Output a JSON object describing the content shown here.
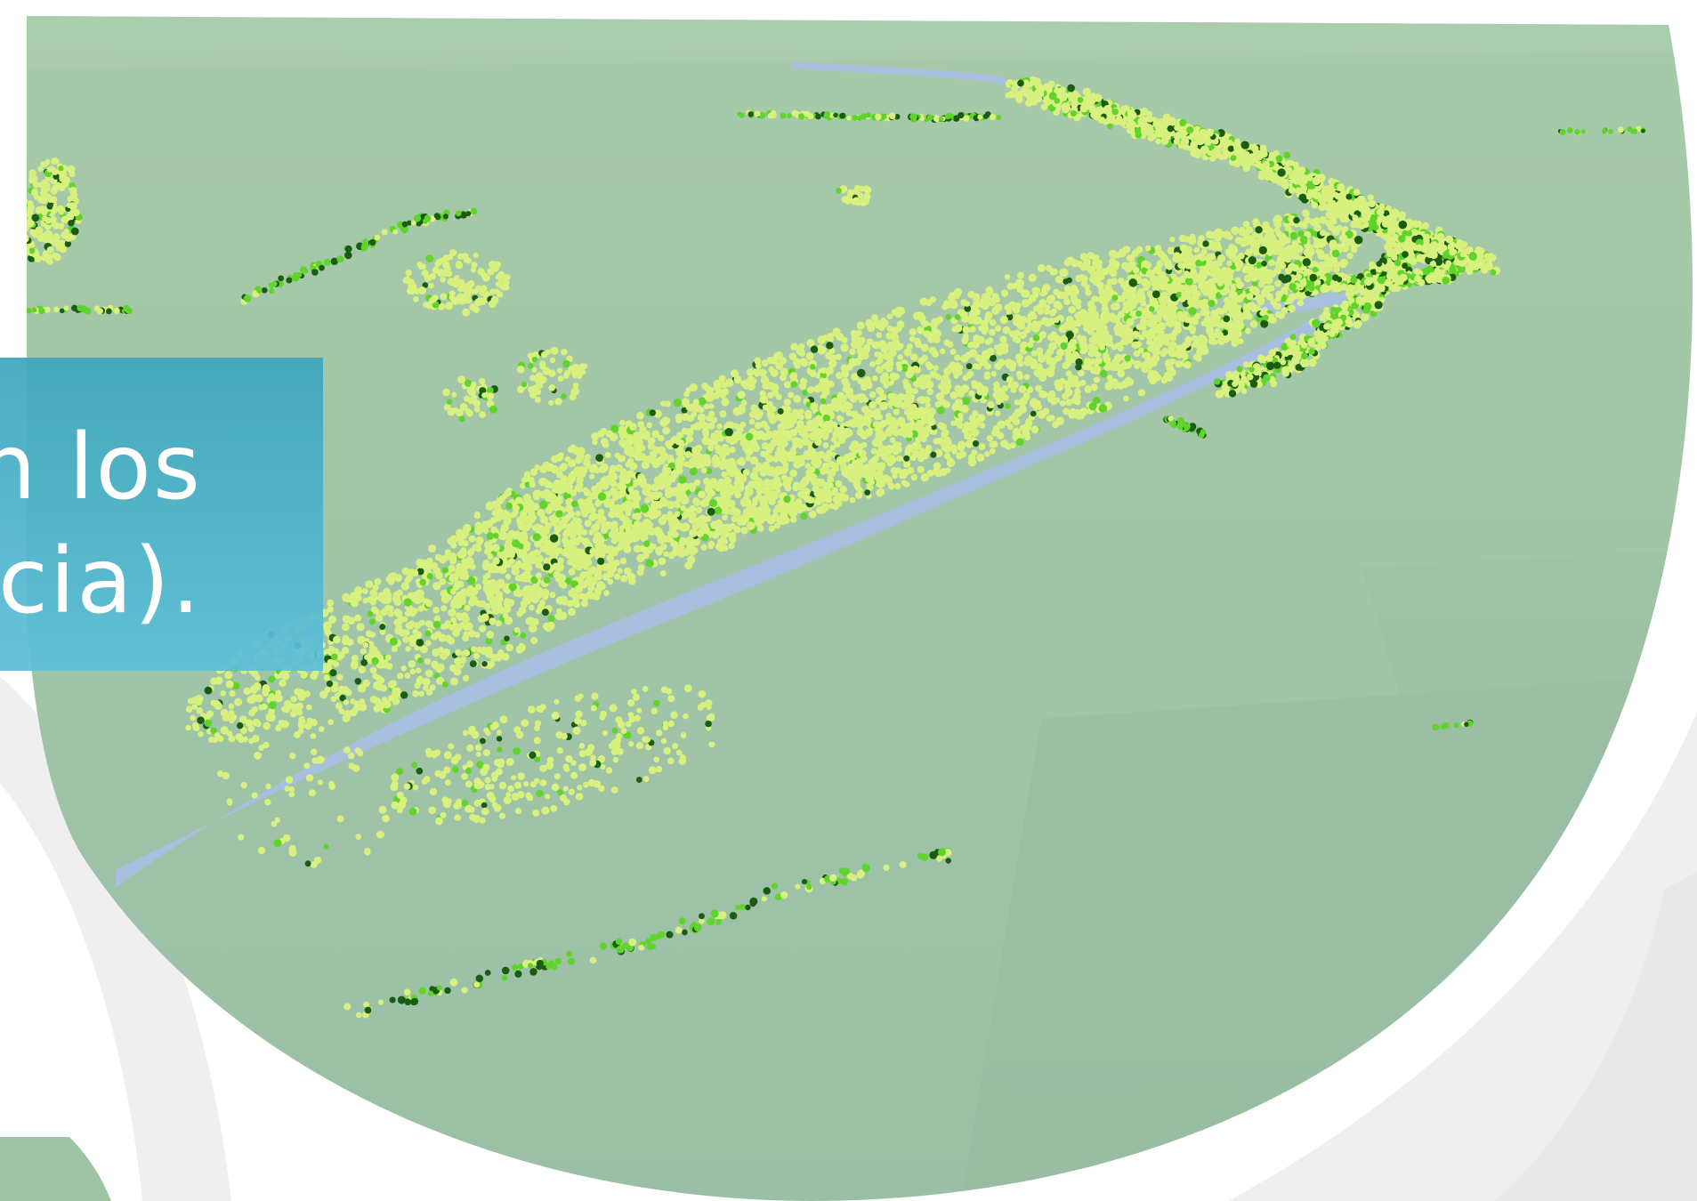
{
  "caption": {
    "line1": "n los",
    "line2": "cia)."
  },
  "colors": {
    "terrain": "#a1c6aa",
    "river": "#a9bfe4",
    "point_light": "#d8f07e",
    "point_mid": "#61d42c",
    "point_dark": "#1a5c12",
    "caption_bg": "#3fa6bd",
    "swoosh": "#ececec"
  },
  "viz": {
    "description_icon": "lidar-point-cloud-view"
  }
}
